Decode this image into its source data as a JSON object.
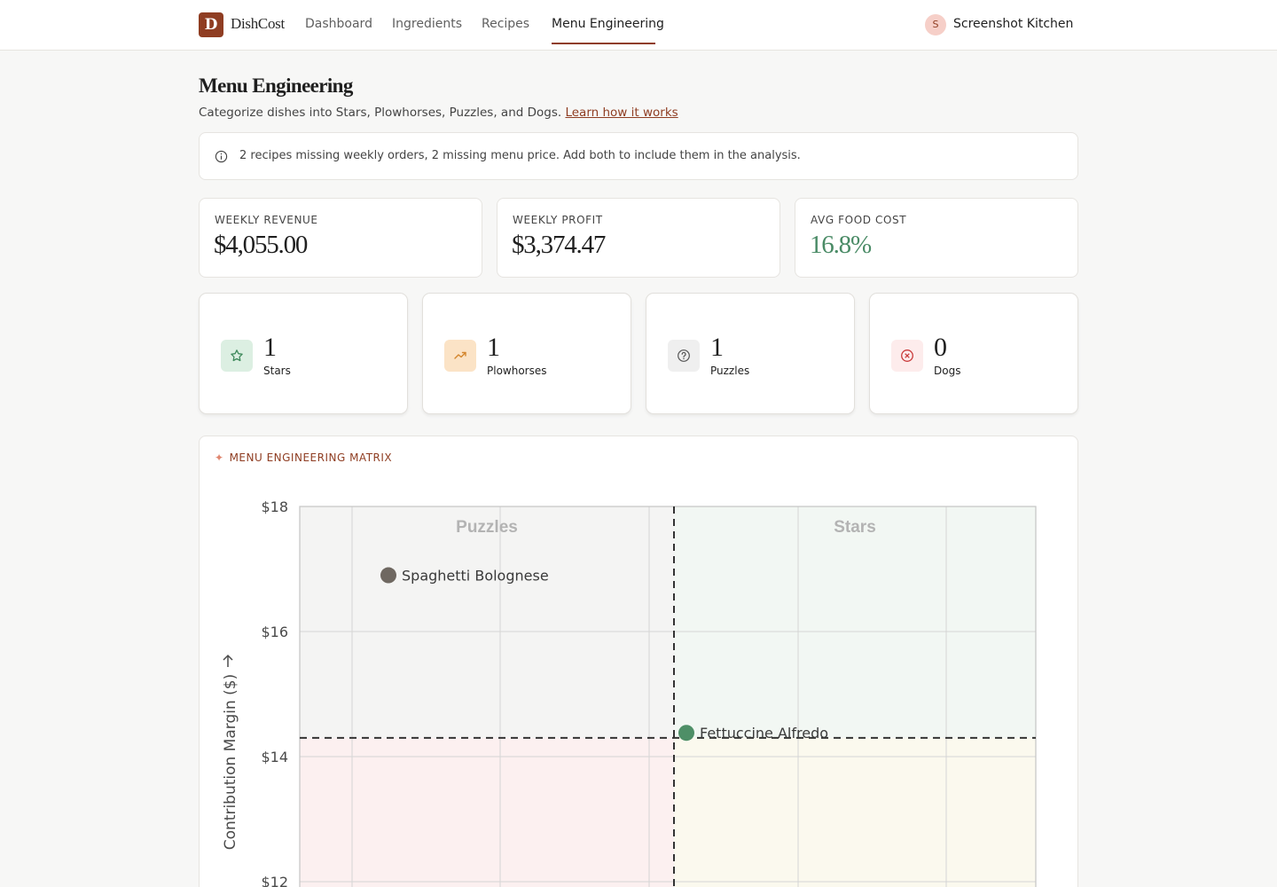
{
  "header": {
    "logo_letter": "D",
    "logo_text": "DishCost",
    "nav": [
      "Dashboard",
      "Ingredients",
      "Recipes",
      "Menu Engineering"
    ],
    "active_nav": "Menu Engineering",
    "avatar_initial": "S",
    "kitchen_name": "Screenshot Kitchen"
  },
  "page": {
    "title": "Menu Engineering",
    "subtitle": "Categorize dishes into Stars, Plowhorses, Puzzles, and Dogs.",
    "learn_link": "Learn how it works",
    "notice": "2 recipes missing weekly orders, 2 missing menu price. Add both to include them in the analysis."
  },
  "stats": [
    {
      "label": "WEEKLY REVENUE",
      "value": "$4,055.00"
    },
    {
      "label": "WEEKLY PROFIT",
      "value": "$3,374.47"
    },
    {
      "label": "AVG FOOD COST",
      "value": "16.8%"
    }
  ],
  "categories": [
    {
      "label": "Stars",
      "count": "1",
      "icon": "star-icon"
    },
    {
      "label": "Plowhorses",
      "count": "1",
      "icon": "trending-up-icon"
    },
    {
      "label": "Puzzles",
      "count": "1",
      "icon": "question-icon"
    },
    {
      "label": "Dogs",
      "count": "0",
      "icon": "x-circle-icon"
    }
  ],
  "colors": {
    "brand": "#8f3d22",
    "stars_bg": "#dcefe2",
    "plowhorses_bg": "#fbe3c6",
    "puzzles_bg": "#efefef",
    "dogs_bg": "#fdecec",
    "star_point": "#4e8f67",
    "puzzle_point": "#6f6861"
  },
  "matrix": {
    "title": "MENU ENGINEERING MATRIX",
    "y_axis_label": "Contribution Margin ($)",
    "quadrant_labels": {
      "top_left": "Puzzles",
      "top_right": "Stars"
    }
  },
  "chart_data": {
    "type": "scatter",
    "title": "MENU ENGINEERING MATRIX",
    "ylabel": "Contribution Margin ($)",
    "y_ticks": [
      "$18",
      "$16",
      "$14",
      "$12"
    ],
    "ylim": [
      12,
      18
    ],
    "margin_threshold": 14.3,
    "points": [
      {
        "name": "Spaghetti Bolognese",
        "margin": 16.9,
        "category": "Puzzles"
      },
      {
        "name": "Fettuccine Alfredo",
        "margin": 14.38,
        "category": "Stars"
      }
    ]
  }
}
